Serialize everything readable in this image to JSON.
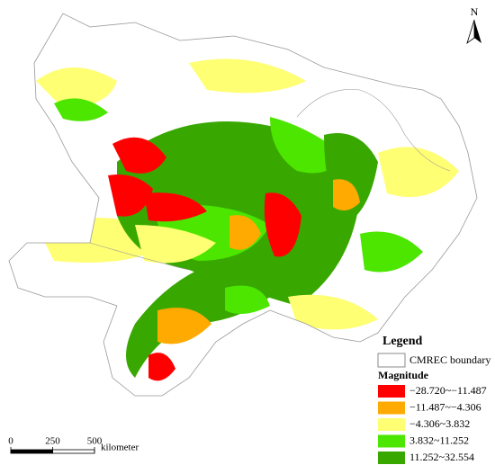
{
  "map": {
    "north_label": "N",
    "legend": {
      "title": "Legend",
      "boundary_label": "CMREC boundary",
      "magnitude_title": "Magnitude",
      "classes": [
        {
          "label": "−28.720~−11.487",
          "color": "#ff0000"
        },
        {
          "label": "−11.487~−4.306",
          "color": "#ffaa00"
        },
        {
          "label": "−4.306~3.832",
          "color": "#ffff73"
        },
        {
          "label": "3.832~11.252",
          "color": "#4ce600"
        },
        {
          "label": "11.252~32.554",
          "color": "#38a800"
        }
      ]
    },
    "scale_bar": {
      "ticks": [
        0,
        250,
        500
      ],
      "unit": "kilometer"
    }
  }
}
